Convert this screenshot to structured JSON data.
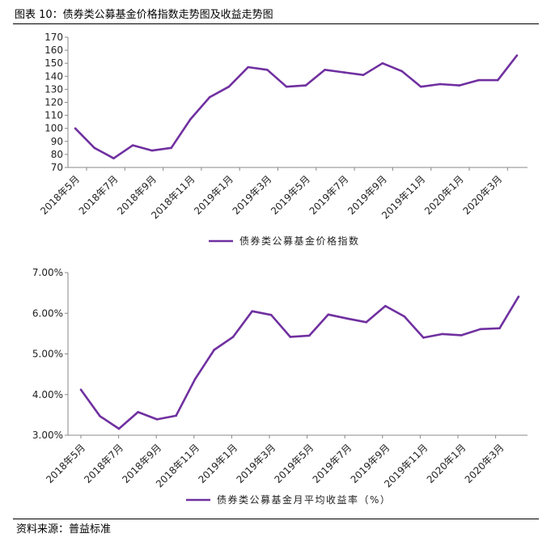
{
  "figure": {
    "title": "图表 10：债券类公募基金价格指数走势图及收益走势图",
    "source": "资料来源：普益标准",
    "accent_color": "#7030a0"
  },
  "chart_data": [
    {
      "type": "line",
      "x": [
        "2018年5月",
        "2018年6月",
        "2018年7月",
        "2018年8月",
        "2018年9月",
        "2018年10月",
        "2018年11月",
        "2018年12月",
        "2019年1月",
        "2019年2月",
        "2019年3月",
        "2019年4月",
        "2019年5月",
        "2019年6月",
        "2019年7月",
        "2019年8月",
        "2019年9月",
        "2019年10月",
        "2019年11月",
        "2019年12月",
        "2020年1月",
        "2020年2月",
        "2020年3月",
        "2020年4月"
      ],
      "x_tick_labels": [
        "2018年5月",
        "2018年7月",
        "2018年9月",
        "2018年11月",
        "2019年1月",
        "2019年3月",
        "2019年5月",
        "2019年7月",
        "2019年9月",
        "2019年11月",
        "2020年1月",
        "2020年3月"
      ],
      "series": [
        {
          "name": "债券类公募基金价格指数",
          "color": "#7030a0",
          "values": [
            100,
            85,
            77,
            87,
            83,
            85,
            107,
            124,
            132,
            147,
            145,
            132,
            133,
            145,
            143,
            141,
            150,
            144,
            132,
            134,
            133,
            137,
            137,
            156
          ]
        }
      ],
      "ylim": [
        70,
        170
      ],
      "y_ticks": [
        "70",
        "80",
        "90",
        "100",
        "110",
        "120",
        "130",
        "140",
        "150",
        "160",
        "170"
      ],
      "grid": false,
      "legend": "bottom"
    },
    {
      "type": "line",
      "x": [
        "2018年5月",
        "2018年6月",
        "2018年7月",
        "2018年8月",
        "2018年9月",
        "2018年10月",
        "2018年11月",
        "2018年12月",
        "2019年1月",
        "2019年2月",
        "2019年3月",
        "2019年4月",
        "2019年5月",
        "2019年6月",
        "2019年7月",
        "2019年8月",
        "2019年9月",
        "2019年10月",
        "2019年11月",
        "2019年12月",
        "2020年1月",
        "2020年2月",
        "2020年3月",
        "2020年4月"
      ],
      "x_tick_labels": [
        "2018年5月",
        "2018年7月",
        "2018年9月",
        "2018年11月",
        "2019年1月",
        "2019年3月",
        "2019年5月",
        "2019年7月",
        "2019年9月",
        "2019年11月",
        "2020年1月",
        "2020年3月"
      ],
      "series": [
        {
          "name": "债券类公募基金月平均收益率（%）",
          "color": "#7030a0",
          "values": [
            4.12,
            3.47,
            3.16,
            3.57,
            3.39,
            3.48,
            4.38,
            5.1,
            5.42,
            6.05,
            5.96,
            5.42,
            5.45,
            5.97,
            5.87,
            5.78,
            6.18,
            5.92,
            5.4,
            5.49,
            5.46,
            5.61,
            5.63,
            6.41
          ]
        }
      ],
      "ylim": [
        3.0,
        7.0
      ],
      "y_ticks": [
        "3.00%",
        "4.00%",
        "5.00%",
        "6.00%",
        "7.00%"
      ],
      "grid": false,
      "legend": "bottom"
    }
  ]
}
